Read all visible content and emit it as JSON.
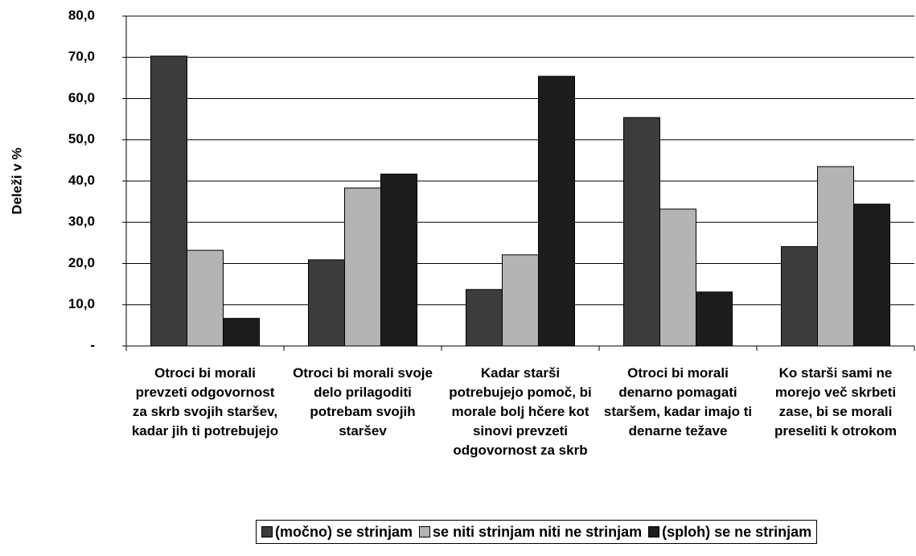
{
  "chart_data": {
    "type": "bar",
    "y_label": "Deleži v %",
    "categories": [
      "Otroci bi morali prevzeti odgovornost za skrb svojih staršev, kadar jih ti potrebujejo",
      "Otroci bi morali svoje delo prilagoditi potrebam svojih staršev",
      "Kadar starši potrebujejo pomoč, bi morale bolj hčere kot sinovi prevzeti odgovornost za skrb",
      "Otroci bi morali denarno pomagati staršem, kadar imajo ti denarne težave",
      "Ko starši sami ne morejo več skrbeti zase, bi se morali preseliti k otrokom"
    ],
    "series": [
      {
        "name": "(močno) se strinjam",
        "color": "#3c3c3c",
        "values": [
          70.3,
          20.9,
          13.7,
          55.4,
          24.1
        ]
      },
      {
        "name": "se niti strinjam niti ne strinjam",
        "color": "#b4b4b4",
        "values": [
          23.2,
          38.3,
          22.1,
          33.2,
          43.5
        ]
      },
      {
        "name": "(sploh) se ne strinjam",
        "color": "#1c1c1c",
        "values": [
          6.7,
          41.7,
          65.4,
          13.1,
          34.4
        ]
      }
    ],
    "ylim": [
      0,
      80
    ],
    "yticks": [
      {
        "value": 0,
        "label": "-"
      },
      {
        "value": 10,
        "label": "10,0"
      },
      {
        "value": 20,
        "label": "20,0"
      },
      {
        "value": 30,
        "label": "30,0"
      },
      {
        "value": 40,
        "label": "40,0"
      },
      {
        "value": 50,
        "label": "50,0"
      },
      {
        "value": 60,
        "label": "60,0"
      },
      {
        "value": 70,
        "label": "70,0"
      },
      {
        "value": 80,
        "label": "80,0"
      }
    ],
    "grid": true,
    "legend": "bottom"
  }
}
